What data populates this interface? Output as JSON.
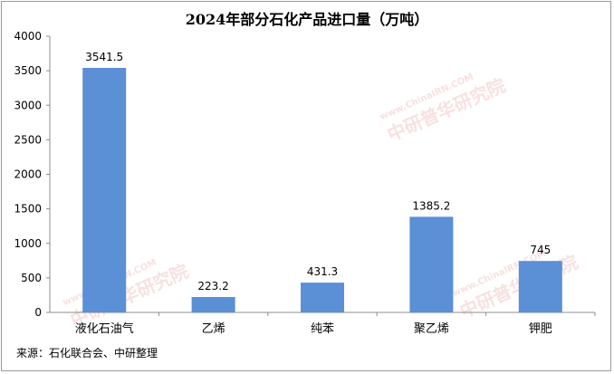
{
  "chart_data": {
    "type": "bar",
    "title": "2024年部分石化产品进口量（万吨）",
    "categories": [
      "液化石油气",
      "乙烯",
      "纯苯",
      "聚乙烯",
      "钾肥"
    ],
    "values": [
      3541.5,
      223.2,
      431.3,
      1385.2,
      745
    ],
    "value_labels": [
      "3541.5",
      "223.2",
      "431.3",
      "1385.2",
      "745"
    ],
    "yticks": [
      "0",
      "500",
      "1000",
      "1500",
      "2000",
      "2500",
      "3000",
      "3500",
      "4000"
    ],
    "ylim": [
      0,
      4000
    ],
    "grid": false,
    "bar_color": "#5b8fd6"
  },
  "source": "来源：石化联合会、中研整理",
  "watermark": {
    "text": "中研普华研究院",
    "url": "www.ChinaIRN.COM",
    "badge": "CIRN"
  }
}
